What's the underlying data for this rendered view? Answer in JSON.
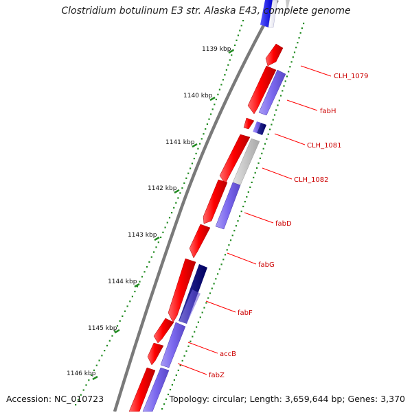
{
  "title": "Clostridium botulinum E3 str. Alaska E43, complete genome",
  "accession": "Accession: NC_010723",
  "summary": "Topology: circular; Length: 3,659,644 bp; Genes: 3,370",
  "kbp_ticks": [
    "1139 kbp",
    "1140 kbp",
    "1141 kbp",
    "1142 kbp",
    "1143 kbp",
    "1144 kbp",
    "1145 kbp",
    "1146 kbp"
  ],
  "gene_labels": [
    "CLH_1079",
    "fabH",
    "CLH_1081",
    "CLH_1082",
    "fabD",
    "fabG",
    "fabF",
    "accB",
    "fabZ"
  ],
  "colors": {
    "forward_strand": "#ff0000",
    "reverse_strand": "#7b68ee",
    "reverse_dark": "#000080",
    "other_gene": "#c0c0c0",
    "backbone": "#777777",
    "tick_marks": "#228b22",
    "label_lines": "#ff0000",
    "top_feature": "#0000ff"
  }
}
